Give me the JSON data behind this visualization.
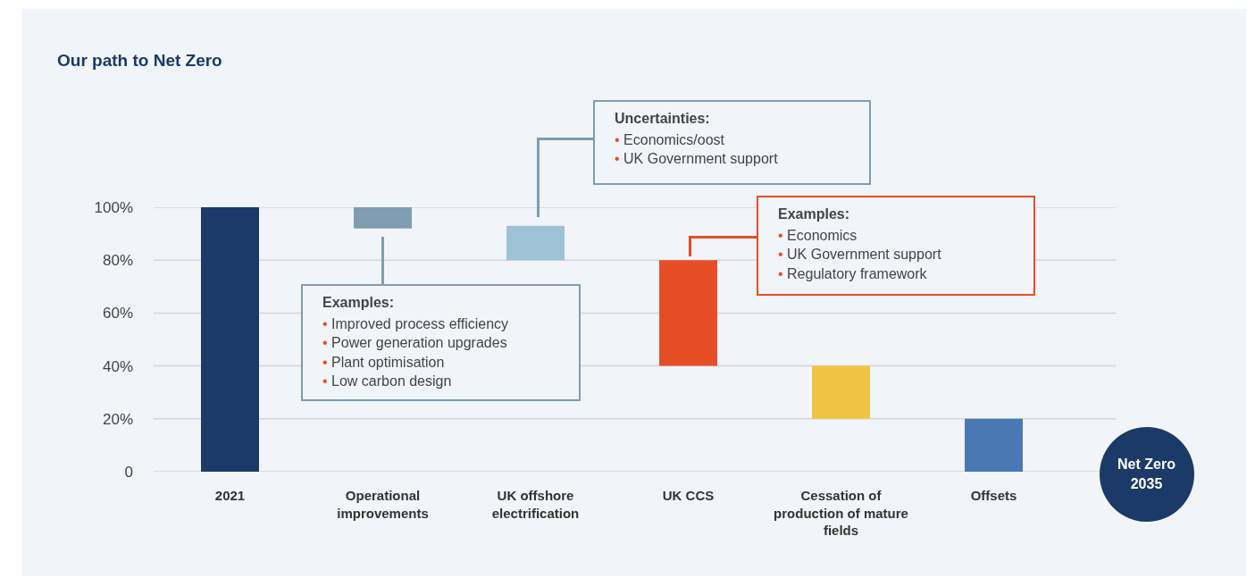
{
  "chart_data": {
    "type": "bar",
    "title": "Our path to Net Zero",
    "categories": [
      "2021",
      "Operational improvements",
      "UK offshore electrification",
      "UK CCS",
      "Cessation of production of mature fields",
      "Offsets",
      null
    ],
    "values": [
      100,
      8,
      13,
      40,
      20,
      20,
      null
    ],
    "base": [
      0,
      92,
      80,
      40,
      20,
      0,
      null
    ],
    "colors": [
      "#1b3a68",
      "#7f9db3",
      "#9ec3d9",
      "#e84e26",
      "#f0c442",
      "#4a78b5",
      "#1b3a68"
    ],
    "ylim": [
      0,
      100
    ],
    "yticks": [
      0,
      {
        "value": 20,
        "label": "20%"
      },
      {
        "value": 40,
        "label": "40%"
      },
      {
        "value": 60,
        "label": "60%"
      },
      {
        "value": 80,
        "label": "80%"
      },
      {
        "value": 100,
        "label": "100%"
      }
    ],
    "grid": "y",
    "annotations": [
      "Examples:\n• Improved process efficiency\n• Power generation upgrades\n• Plant optimisation\n• Low carbon design",
      "Uncertainties:\n• Economics/oost\n• UK Government support",
      "Examples:\n• Economics\n• UK Government support\n• Regulatory framework",
      "Net Zero\n2035"
    ]
  }
}
